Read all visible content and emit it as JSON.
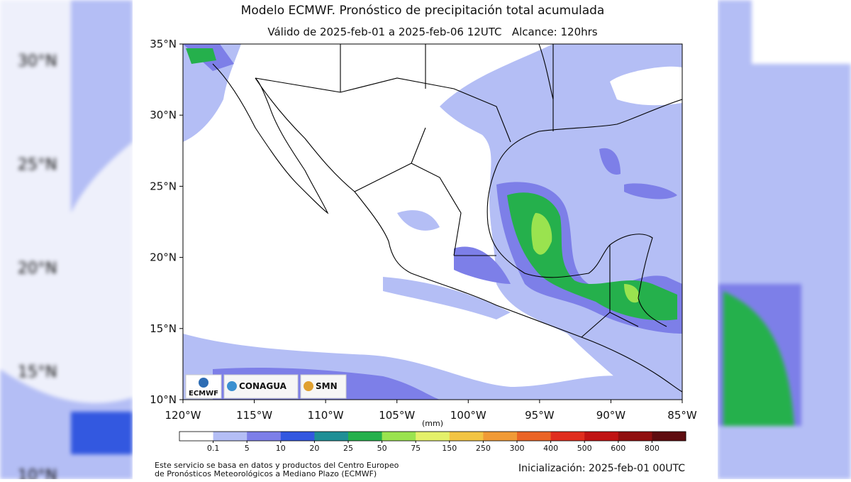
{
  "header": {
    "title": "Modelo ECMWF. Pronóstico de precipitación total acumulada",
    "subtitle": "Válido de 2025-feb-01 a 2025-feb-06 12UTC   Alcance: 120hrs"
  },
  "map": {
    "xlim": [
      -120,
      -85
    ],
    "ylim": [
      10,
      35
    ],
    "xticks": [
      {
        "value": -120,
        "label": "120°W"
      },
      {
        "value": -115,
        "label": "115°W"
      },
      {
        "value": -110,
        "label": "110°W"
      },
      {
        "value": -105,
        "label": "105°W"
      },
      {
        "value": -100,
        "label": "100°W"
      },
      {
        "value": -95,
        "label": "95°W"
      },
      {
        "value": -90,
        "label": "90°W"
      },
      {
        "value": -85,
        "label": "85°W"
      }
    ],
    "yticks": [
      {
        "value": 35,
        "label": "35°N"
      },
      {
        "value": 30,
        "label": "30°N"
      },
      {
        "value": 25,
        "label": "25°N"
      },
      {
        "value": 20,
        "label": "20°N"
      },
      {
        "value": 15,
        "label": "15°N"
      },
      {
        "value": 10,
        "label": "10°N"
      }
    ],
    "logos": [
      "ECMWF",
      "CONAGUA",
      "SMN"
    ]
  },
  "legend": {
    "unit": "(mm)",
    "levels": [
      0.1,
      5,
      10,
      20,
      25,
      50,
      75,
      150,
      250,
      300,
      400,
      500,
      600,
      800
    ],
    "colors": [
      "#ffffff",
      "#b4bef5",
      "#7d7fe8",
      "#3358e0",
      "#1f8f96",
      "#25b04c",
      "#9ae34f",
      "#e4f06a",
      "#f2c444",
      "#f09a36",
      "#ea6426",
      "#e02e1e",
      "#c01414",
      "#901010",
      "#5e0c10"
    ]
  },
  "footer": {
    "credit": [
      "Este servicio se basa en datos y productos del Centro Europeo",
      "de Pronósticos Meteorológicos a Mediano Plazo (ECMWF)"
    ],
    "init": "Inicialización: 2025-feb-01 00UTC"
  }
}
